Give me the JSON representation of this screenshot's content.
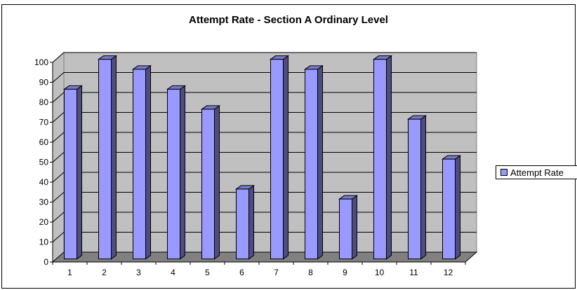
{
  "chart_data": {
    "type": "bar",
    "title": "Attempt Rate - Section A Ordinary Level",
    "xlabel": "",
    "ylabel": "",
    "categories": [
      "1",
      "2",
      "3",
      "4",
      "5",
      "6",
      "7",
      "8",
      "9",
      "10",
      "11",
      "12"
    ],
    "series": [
      {
        "name": "Attempt Rate",
        "values": [
          85,
          100,
          95,
          85,
          75,
          35,
          100,
          95,
          30,
          100,
          70,
          50
        ],
        "color": "#9999ff"
      }
    ],
    "ylim": [
      0,
      100
    ],
    "yticks": [
      "0",
      "10",
      "20",
      "30",
      "40",
      "50",
      "60",
      "70",
      "80",
      "90",
      "100"
    ],
    "grid": true,
    "legend": "right",
    "style": "3d-column",
    "colors": {
      "wall": "#c0c0c0",
      "floor": "#808080",
      "bar_front": "#9999ff",
      "bar_side": "#4d4d80",
      "bar_top": "#7a7acc"
    }
  }
}
